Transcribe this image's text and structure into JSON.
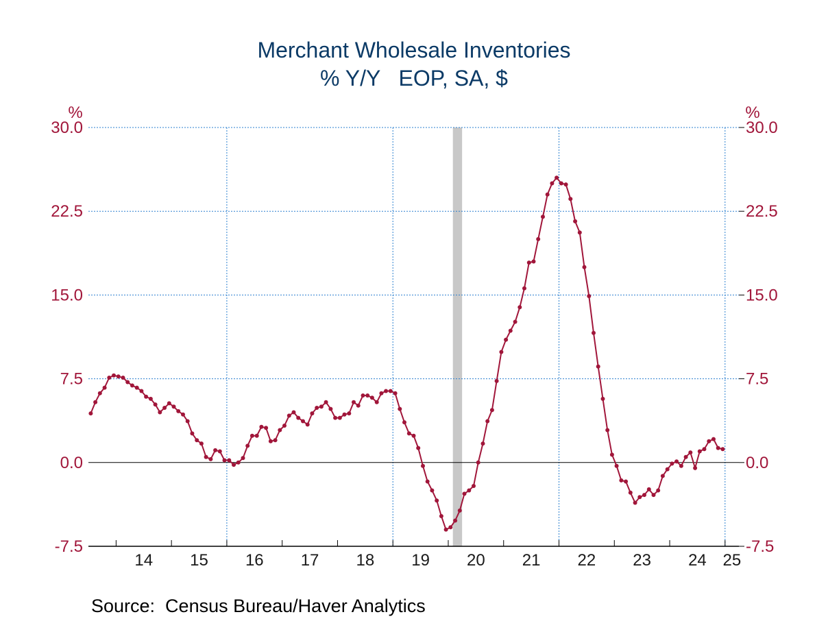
{
  "chart_data": {
    "type": "line",
    "title": "Merchant Wholesale Inventories",
    "subtitle": "% Y/Y   EOP, SA, $",
    "y_unit_left": "%",
    "y_unit_right": "%",
    "ylim": [
      -7.5,
      30.0
    ],
    "y_ticks": [
      "30.0",
      "22.5",
      "15.0",
      "7.5",
      "0.0",
      "-7.5"
    ],
    "x_range": [
      "2013-07",
      "2025-03"
    ],
    "x_ticks": [
      "14",
      "15",
      "16",
      "17",
      "18",
      "19",
      "20",
      "21",
      "22",
      "23",
      "24",
      "25"
    ],
    "grid": true,
    "vertical_gridlines_at_years": [
      "2016",
      "2019",
      "2022",
      "2025"
    ],
    "recession_shading": [
      {
        "start": "2020-02",
        "end": "2020-04"
      }
    ],
    "source": "Source:  Census Bureau/Haver Analytics",
    "colors": {
      "line": "#a1163a",
      "title": "#0b3a66",
      "ticks": "#a1163a",
      "grid": "#2a7fcf",
      "recession": "#c8c8c8"
    },
    "series": [
      {
        "start": "2013-07",
        "frequency": "monthly",
        "values": [
          4.4,
          5.4,
          6.2,
          6.7,
          7.6,
          7.8,
          7.7,
          7.6,
          7.2,
          6.9,
          6.7,
          6.4,
          5.9,
          5.7,
          5.2,
          4.5,
          4.9,
          5.3,
          5.0,
          4.6,
          4.3,
          3.7,
          2.6,
          2.0,
          1.7,
          0.5,
          0.3,
          1.1,
          1.0,
          0.2,
          0.2,
          -0.2,
          0.0,
          0.4,
          1.5,
          2.4,
          2.4,
          3.2,
          3.1,
          1.9,
          2.0,
          2.9,
          3.3,
          4.2,
          4.5,
          4.0,
          3.7,
          3.4,
          4.4,
          4.9,
          5.0,
          5.4,
          4.8,
          4.0,
          4.0,
          4.3,
          4.4,
          5.4,
          5.1,
          6.0,
          6.0,
          5.8,
          5.4,
          6.2,
          6.4,
          6.4,
          6.2,
          4.8,
          3.6,
          2.6,
          2.4,
          1.3,
          -0.3,
          -1.7,
          -2.5,
          -3.4,
          -4.8,
          -6.0,
          -5.8,
          -5.2,
          -4.3,
          -2.8,
          -2.5,
          -2.1,
          0.0,
          1.7,
          3.7,
          4.7,
          7.3,
          9.9,
          11.0,
          11.8,
          12.6,
          13.9,
          15.6,
          17.9,
          18.0,
          20.0,
          22.0,
          24.0,
          25.0,
          25.5,
          25.0,
          24.9,
          23.6,
          21.6,
          20.6,
          17.5,
          14.9,
          11.6,
          8.6,
          5.7,
          2.9,
          0.7,
          -0.3,
          -1.6,
          -1.7,
          -2.7,
          -3.6,
          -3.1,
          -2.9,
          -2.4,
          -2.9,
          -2.5,
          -1.2,
          -0.6,
          -0.1,
          0.1,
          -0.3,
          0.5,
          0.9,
          -0.5,
          1.0,
          1.2,
          1.9,
          2.1,
          1.3,
          1.2
        ]
      }
    ]
  }
}
